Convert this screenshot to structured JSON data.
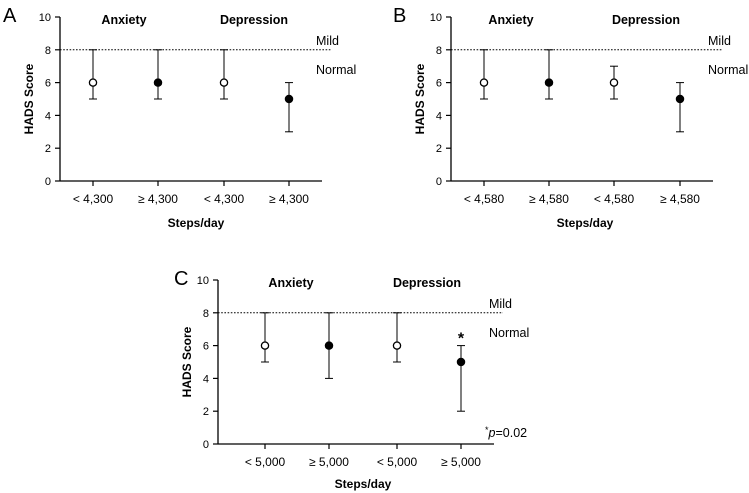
{
  "chart_data": [
    {
      "type": "scatter",
      "panel": "A",
      "ylabel": "HADS Score",
      "xlabel": "Steps/day",
      "ylim": [
        0,
        10
      ],
      "yticks": [
        0,
        2,
        4,
        6,
        8,
        10
      ],
      "reference_line": {
        "y": 8,
        "style": "dotted"
      },
      "reference_labels": {
        "above": "Mild",
        "below": "Normal"
      },
      "groups": [
        "Anxiety",
        "Depression"
      ],
      "categories": [
        "< 4,300",
        "≥ 4,300",
        "< 4,300",
        "≥ 4,300"
      ],
      "points": [
        {
          "median": 6,
          "low": 5,
          "high": 8,
          "filled": false
        },
        {
          "median": 6,
          "low": 5,
          "high": 8,
          "filled": true
        },
        {
          "median": 6,
          "low": 5,
          "high": 8,
          "filled": false
        },
        {
          "median": 5,
          "low": 3,
          "high": 6,
          "filled": true
        }
      ]
    },
    {
      "type": "scatter",
      "panel": "B",
      "ylabel": "HADS Score",
      "xlabel": "Steps/day",
      "ylim": [
        0,
        10
      ],
      "yticks": [
        0,
        2,
        4,
        6,
        8,
        10
      ],
      "reference_line": {
        "y": 8,
        "style": "dotted"
      },
      "reference_labels": {
        "above": "Mild",
        "below": "Normal"
      },
      "groups": [
        "Anxiety",
        "Depression"
      ],
      "categories": [
        "< 4,580",
        "≥ 4,580",
        "< 4,580",
        "≥ 4,580"
      ],
      "points": [
        {
          "median": 6,
          "low": 5,
          "high": 8,
          "filled": false
        },
        {
          "median": 6,
          "low": 5,
          "high": 8,
          "filled": true
        },
        {
          "median": 6,
          "low": 5,
          "high": 7,
          "filled": false
        },
        {
          "median": 5,
          "low": 3,
          "high": 6,
          "filled": true
        }
      ]
    },
    {
      "type": "scatter",
      "panel": "C",
      "ylabel": "HADS Score",
      "xlabel": "Steps/day",
      "ylim": [
        0,
        10
      ],
      "yticks": [
        0,
        2,
        4,
        6,
        8,
        10
      ],
      "reference_line": {
        "y": 8,
        "style": "dotted"
      },
      "reference_labels": {
        "above": "Mild",
        "below": "Normal"
      },
      "groups": [
        "Anxiety",
        "Depression"
      ],
      "categories": [
        "< 5,000",
        "≥ 5,000",
        "< 5,000",
        "≥ 5,000"
      ],
      "points": [
        {
          "median": 6,
          "low": 5,
          "high": 8,
          "filled": false
        },
        {
          "median": 6,
          "low": 4,
          "high": 8,
          "filled": true
        },
        {
          "median": 6,
          "low": 5,
          "high": 8,
          "filled": false
        },
        {
          "median": 5,
          "low": 2,
          "high": 6,
          "filled": true,
          "annotation": "*"
        }
      ],
      "note": {
        "star": "*",
        "p": "p",
        "rest": "=0.02"
      }
    }
  ]
}
